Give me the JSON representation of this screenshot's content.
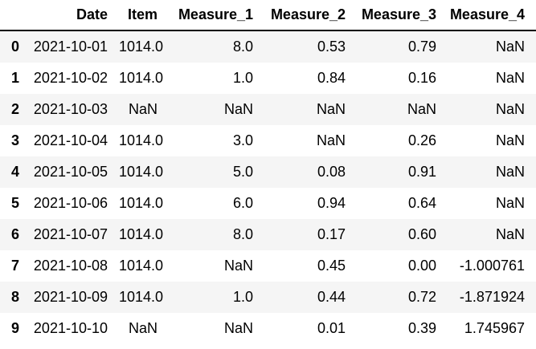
{
  "table": {
    "columns": [
      "",
      "Date",
      "Item",
      "Measure_1",
      "Measure_2",
      "Measure_3",
      "Measure_4"
    ],
    "rows": [
      {
        "index": "0",
        "cells": [
          "2021-10-01",
          "1014.0",
          "8.0",
          "0.53",
          "0.79",
          "NaN"
        ]
      },
      {
        "index": "1",
        "cells": [
          "2021-10-02",
          "1014.0",
          "1.0",
          "0.84",
          "0.16",
          "NaN"
        ]
      },
      {
        "index": "2",
        "cells": [
          "2021-10-03",
          "NaN",
          "NaN",
          "NaN",
          "NaN",
          "NaN"
        ]
      },
      {
        "index": "3",
        "cells": [
          "2021-10-04",
          "1014.0",
          "3.0",
          "NaN",
          "0.26",
          "NaN"
        ]
      },
      {
        "index": "4",
        "cells": [
          "2021-10-05",
          "1014.0",
          "5.0",
          "0.08",
          "0.91",
          "NaN"
        ]
      },
      {
        "index": "5",
        "cells": [
          "2021-10-06",
          "1014.0",
          "6.0",
          "0.94",
          "0.64",
          "NaN"
        ]
      },
      {
        "index": "6",
        "cells": [
          "2021-10-07",
          "1014.0",
          "8.0",
          "0.17",
          "0.60",
          "NaN"
        ]
      },
      {
        "index": "7",
        "cells": [
          "2021-10-08",
          "1014.0",
          "NaN",
          "0.45",
          "0.00",
          "-1.000761"
        ]
      },
      {
        "index": "8",
        "cells": [
          "2021-10-09",
          "1014.0",
          "1.0",
          "0.44",
          "0.72",
          "-1.871924"
        ]
      },
      {
        "index": "9",
        "cells": [
          "2021-10-10",
          "NaN",
          "NaN",
          "0.01",
          "0.39",
          "1.745967"
        ]
      }
    ]
  },
  "chart_data": {
    "type": "table",
    "title": "",
    "columns": [
      "Date",
      "Item",
      "Measure_1",
      "Measure_2",
      "Measure_3",
      "Measure_4"
    ],
    "index": [
      0,
      1,
      2,
      3,
      4,
      5,
      6,
      7,
      8,
      9
    ],
    "records": [
      [
        "2021-10-01",
        1014.0,
        8.0,
        0.53,
        0.79,
        null
      ],
      [
        "2021-10-02",
        1014.0,
        1.0,
        0.84,
        0.16,
        null
      ],
      [
        "2021-10-03",
        null,
        null,
        null,
        null,
        null
      ],
      [
        "2021-10-04",
        1014.0,
        3.0,
        null,
        0.26,
        null
      ],
      [
        "2021-10-05",
        1014.0,
        5.0,
        0.08,
        0.91,
        null
      ],
      [
        "2021-10-06",
        1014.0,
        6.0,
        0.94,
        0.64,
        null
      ],
      [
        "2021-10-07",
        1014.0,
        8.0,
        0.17,
        0.6,
        null
      ],
      [
        "2021-10-08",
        1014.0,
        null,
        0.45,
        0.0,
        -1.000761
      ],
      [
        "2021-10-09",
        1014.0,
        1.0,
        0.44,
        0.72,
        -1.871924
      ],
      [
        "2021-10-10",
        null,
        null,
        0.01,
        0.39,
        1.745967
      ]
    ]
  },
  "colors": {
    "stripe": "#f5f5f5",
    "header_border": "#000000",
    "text": "#000000"
  }
}
